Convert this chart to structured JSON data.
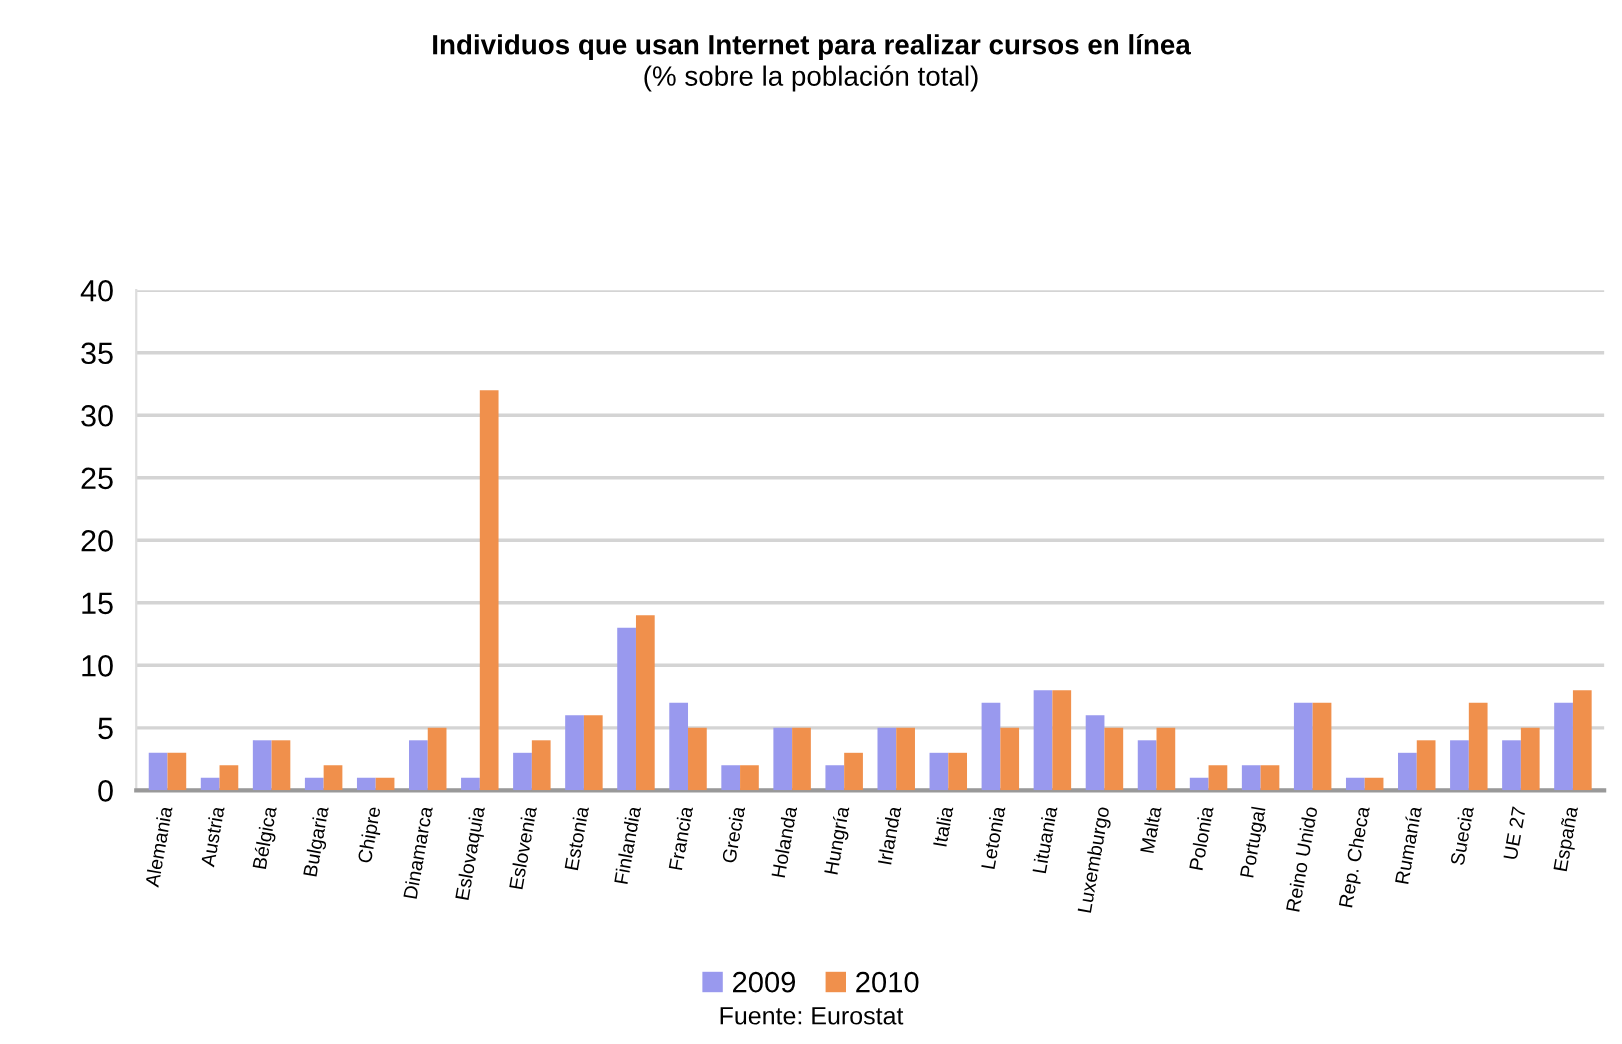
{
  "chart_data": {
    "type": "bar",
    "title": "Individuos que usan Internet para realizar cursos en línea",
    "subtitle": "(% sobre la población total)",
    "categories": [
      "Alemania",
      "Austria",
      "Bélgica",
      "Bulgaria",
      "Chipre",
      "Dinamarca",
      "Eslovaquia",
      "Eslovenia",
      "Estonia",
      "Finlandia",
      "Francia",
      "Grecia",
      "Holanda",
      "Hungría",
      "Irlanda",
      "Italia",
      "Letonia",
      "Lituania",
      "Luxemburgo",
      "Malta",
      "Polonia",
      "Portugal",
      "Reino Unido",
      "Rep. Checa",
      "Rumanía",
      "Suecia",
      "UE 27",
      "España"
    ],
    "series": [
      {
        "name": "2009",
        "color": "#9999ee",
        "values": [
          3,
          1,
          4,
          1,
          1,
          4,
          1,
          3,
          6,
          13,
          7,
          2,
          5,
          2,
          5,
          3,
          7,
          8,
          6,
          4,
          1,
          2,
          7,
          1,
          3,
          4,
          4,
          7
        ]
      },
      {
        "name": "2010",
        "color": "#f0904c",
        "values": [
          3,
          2,
          4,
          2,
          1,
          5,
          32,
          4,
          6,
          14,
          5,
          2,
          5,
          3,
          5,
          3,
          5,
          8,
          5,
          5,
          2,
          2,
          7,
          1,
          4,
          7,
          5,
          8
        ]
      }
    ],
    "ylim": [
      0,
      40
    ],
    "yticks": [
      0,
      5,
      10,
      15,
      20,
      25,
      30,
      35,
      40
    ],
    "grid": "y",
    "legend": "bottom",
    "annotations": [
      "Fuente: Eurostat"
    ]
  }
}
